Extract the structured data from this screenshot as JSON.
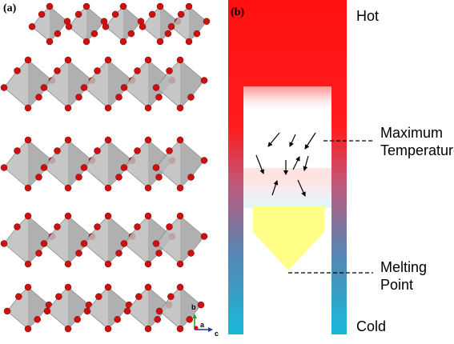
{
  "panels": {
    "a": {
      "label": "(a)"
    },
    "b": {
      "label": "(b)"
    }
  },
  "axes_indicator": {
    "b": "b",
    "a": "a",
    "c": "c"
  },
  "furnace": {
    "hot_label": "Hot",
    "cold_label": "Cold",
    "annotations": {
      "max_temp_line1": "Maximum",
      "max_temp_line2": "Temperature",
      "melting_line1": "Melting",
      "melting_line2": "Point"
    },
    "colors": {
      "hot": "#ff1a1a",
      "cold": "#1eb4dc",
      "melt": "#ffff88",
      "octahedron_fill": "#bcbcbc",
      "oxygen": "#cc1111",
      "axis_b": "#2ca02c",
      "axis_a": "#cc1111",
      "axis_c": "#1f3a9a"
    }
  }
}
